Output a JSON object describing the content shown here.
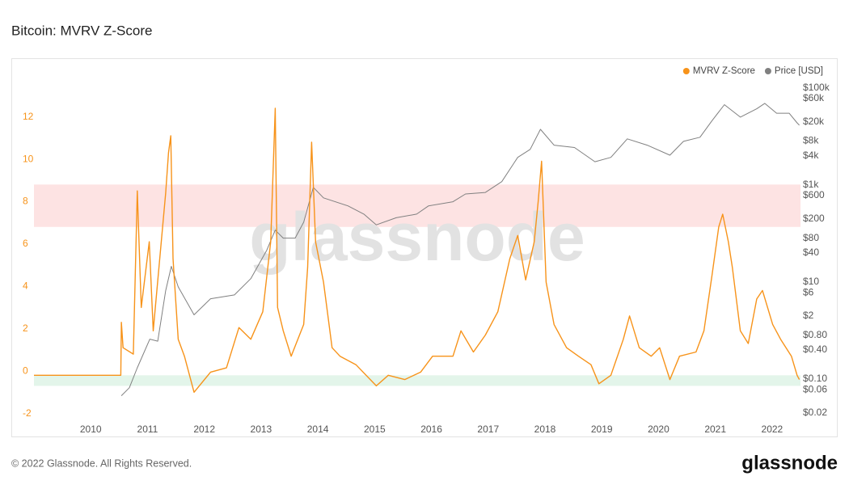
{
  "chart_data": {
    "type": "line",
    "title": "Bitcoin: MVRV Z-Score",
    "watermark": "glassnode",
    "xlim": [
      2009,
      2022.5
    ],
    "xticks": [
      2010,
      2011,
      2012,
      2013,
      2014,
      2015,
      2016,
      2017,
      2018,
      2019,
      2020,
      2021,
      2022
    ],
    "ylim": [
      -2.2,
      14.2
    ],
    "yticks": [
      -2,
      0,
      2,
      4,
      6,
      8,
      10,
      12
    ],
    "y2lim": [
      0.013,
      190000
    ],
    "y2log": true,
    "y2ticks": [
      {
        "value": 100000,
        "label": "$100k"
      },
      {
        "value": 60000,
        "label": "$60k"
      },
      {
        "value": 20000,
        "label": "$20k"
      },
      {
        "value": 8000,
        "label": "$8k"
      },
      {
        "value": 4000,
        "label": "$4k"
      },
      {
        "value": 1000,
        "label": "$1k"
      },
      {
        "value": 600,
        "label": "$600"
      },
      {
        "value": 200,
        "label": "$200"
      },
      {
        "value": 80,
        "label": "$80"
      },
      {
        "value": 40,
        "label": "$40"
      },
      {
        "value": 10,
        "label": "$10"
      },
      {
        "value": 6,
        "label": "$6"
      },
      {
        "value": 2,
        "label": "$2"
      },
      {
        "value": 0.8,
        "label": "$0.80"
      },
      {
        "value": 0.4,
        "label": "$0.40"
      },
      {
        "value": 0.1,
        "label": "$0.10"
      },
      {
        "value": 0.06,
        "label": "$0.06"
      },
      {
        "value": 0.02,
        "label": "$0.02"
      }
    ],
    "grid": false,
    "legend": "top-right",
    "bands": [
      {
        "from": 7,
        "to": 9,
        "color": "#fde3e3"
      },
      {
        "from": -0.5,
        "to": 0,
        "color": "#e3f5ea"
      }
    ],
    "series": [
      {
        "name": "MVRV Z-Score",
        "color": "#f7931a",
        "x": [
          2009.0,
          2010.53,
          2010.54,
          2010.57,
          2010.75,
          2010.82,
          2010.89,
          2011.03,
          2011.1,
          2011.32,
          2011.37,
          2011.41,
          2011.45,
          2011.54,
          2011.65,
          2011.82,
          2012.11,
          2012.39,
          2012.61,
          2012.82,
          2013.03,
          2013.17,
          2013.25,
          2013.29,
          2013.39,
          2013.53,
          2013.75,
          2013.82,
          2013.89,
          2013.96,
          2014.1,
          2014.25,
          2014.39,
          2014.67,
          2015.03,
          2015.24,
          2015.53,
          2015.81,
          2016.02,
          2016.38,
          2016.52,
          2016.74,
          2016.95,
          2017.17,
          2017.38,
          2017.52,
          2017.66,
          2017.81,
          2017.88,
          2017.94,
          2018.02,
          2018.16,
          2018.38,
          2018.59,
          2018.81,
          2018.95,
          2019.16,
          2019.38,
          2019.49,
          2019.66,
          2019.87,
          2020.02,
          2020.2,
          2020.37,
          2020.66,
          2020.8,
          2020.94,
          2021.06,
          2021.13,
          2021.23,
          2021.3,
          2021.44,
          2021.58,
          2021.73,
          2021.83,
          2022.01,
          2022.15,
          2022.34,
          2022.44,
          2022.48
        ],
        "values": [
          0,
          0,
          2.5,
          1.3,
          1.0,
          8.7,
          3.2,
          6.3,
          2.1,
          8.6,
          10.5,
          11.3,
          5.5,
          1.7,
          0.9,
          -0.8,
          0.15,
          0.35,
          2.25,
          1.7,
          3.0,
          6.3,
          12.6,
          3.2,
          2.1,
          0.9,
          2.4,
          5.1,
          11.0,
          6.3,
          4.4,
          1.3,
          0.9,
          0.5,
          -0.5,
          0,
          -0.2,
          0.15,
          0.9,
          0.9,
          2.1,
          1.1,
          1.9,
          3.0,
          5.5,
          6.6,
          4.5,
          6.3,
          8.2,
          10.1,
          4.4,
          2.4,
          1.3,
          0.9,
          0.5,
          -0.4,
          0,
          1.7,
          2.8,
          1.3,
          0.9,
          1.3,
          -0.2,
          0.9,
          1.1,
          2.1,
          4.7,
          7.0,
          7.6,
          6.3,
          5.1,
          2.1,
          1.5,
          3.6,
          4.0,
          2.4,
          1.7,
          0.9,
          0,
          -0.2
        ]
      },
      {
        "name": "Price [USD]",
        "color": "#808080",
        "axis": "y2",
        "x": [
          2010.54,
          2010.68,
          2010.82,
          2011.04,
          2011.18,
          2011.32,
          2011.42,
          2011.54,
          2011.82,
          2012.11,
          2012.53,
          2012.82,
          2013.1,
          2013.25,
          2013.39,
          2013.6,
          2013.75,
          2013.92,
          2014.1,
          2014.53,
          2014.81,
          2015.03,
          2015.38,
          2015.74,
          2015.95,
          2016.38,
          2016.6,
          2016.95,
          2017.24,
          2017.52,
          2017.74,
          2017.92,
          2018.16,
          2018.52,
          2018.88,
          2019.16,
          2019.45,
          2019.8,
          2020.2,
          2020.44,
          2020.73,
          2020.94,
          2021.16,
          2021.44,
          2021.73,
          2021.87,
          2022.08,
          2022.3,
          2022.44,
          2022.48
        ],
        "values": [
          0.045,
          0.066,
          0.17,
          0.66,
          0.6,
          6.6,
          21,
          7.9,
          2.1,
          4.5,
          5.4,
          11.7,
          45,
          117,
          80,
          80,
          170,
          890,
          540,
          370,
          250,
          150,
          210,
          250,
          370,
          450,
          650,
          700,
          1170,
          3700,
          5400,
          14000,
          6600,
          5900,
          3000,
          3700,
          8900,
          6600,
          4100,
          7900,
          9600,
          21000,
          45000,
          25000,
          37000,
          48000,
          30000,
          30000,
          19000,
          17000
        ]
      }
    ]
  },
  "footer": {
    "copyright": "© 2022 Glassnode. All Rights Reserved.",
    "logo": "glassnode"
  }
}
